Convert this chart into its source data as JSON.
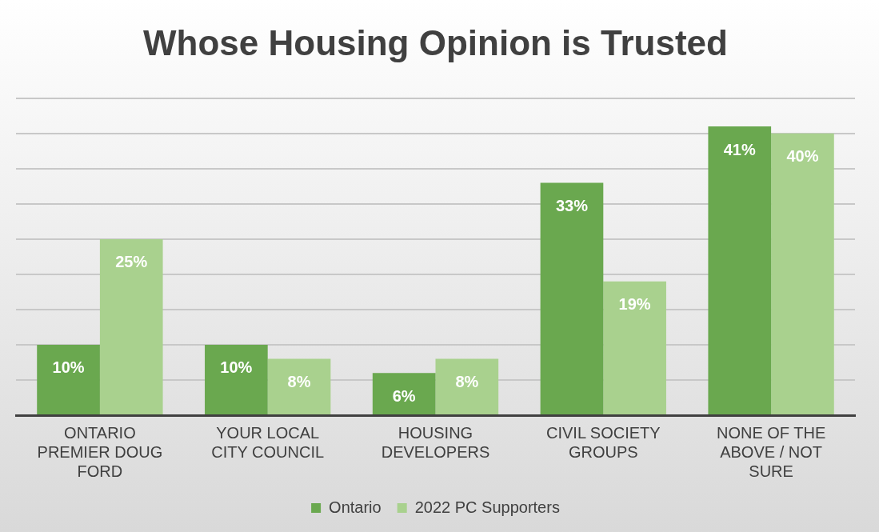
{
  "chart_data": {
    "type": "bar",
    "title": "Whose Housing Opinion is Trusted",
    "categories": [
      "ONTARIO PREMIER DOUG FORD",
      "YOUR LOCAL CITY COUNCIL",
      "HOUSING DEVELOPERS",
      "CIVIL SOCIETY GROUPS",
      "NONE OF THE ABOVE / NOT SURE"
    ],
    "series": [
      {
        "name": "Ontario",
        "color": "#6aa84f",
        "values": [
          10,
          10,
          6,
          33,
          41
        ],
        "value_labels": [
          "10%",
          "10%",
          "6%",
          "33%",
          "41%"
        ]
      },
      {
        "name": "2022 PC Supporters",
        "color": "#a9d18e",
        "values": [
          25,
          8,
          8,
          19,
          40
        ],
        "value_labels": [
          "25%",
          "8%",
          "8%",
          "19%",
          "40%"
        ]
      }
    ],
    "data_labels": true,
    "tick_labels": "x",
    "grid": "y",
    "legend": "bottom"
  }
}
